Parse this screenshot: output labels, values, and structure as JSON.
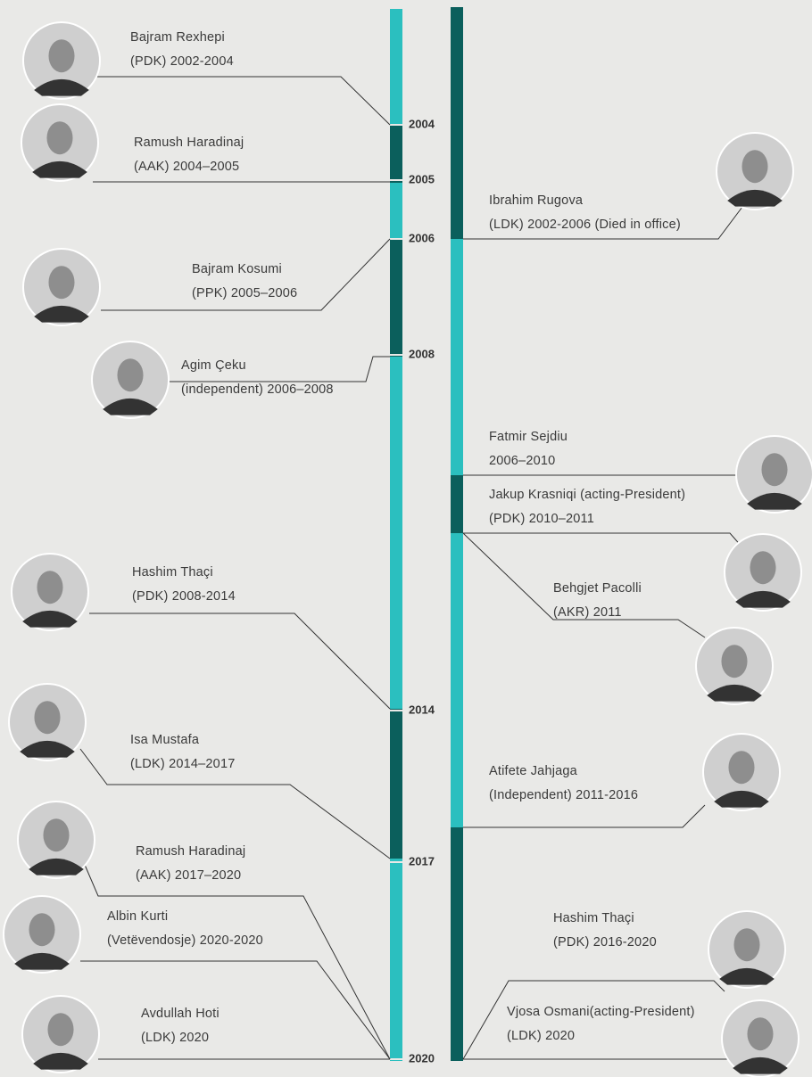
{
  "years": [
    "2004",
    "2005",
    "2006",
    "2008",
    "2014",
    "2017",
    "2020"
  ],
  "left_entries": [
    {
      "name": "Bajram Rexhepi",
      "detail": "(PDK) 2002-2004"
    },
    {
      "name": "Ramush Haradinaj",
      "detail": "(AAK) 2004–2005"
    },
    {
      "name": "Bajram Kosumi",
      "detail": "(PPK) 2005–2006"
    },
    {
      "name": "Agim Çeku",
      "detail": "(independent) 2006–2008"
    },
    {
      "name": "Hashim Thaçi",
      "detail": "(PDK) 2008-2014"
    },
    {
      "name": "Isa Mustafa",
      "detail": "(LDK) 2014–2017"
    },
    {
      "name": "Ramush Haradinaj",
      "detail": "(AAK) 2017–2020"
    },
    {
      "name": "Albin Kurti",
      "detail": "(Vetëvendosje) 2020-2020"
    },
    {
      "name": "Avdullah Hoti",
      "detail": "(LDK) 2020"
    }
  ],
  "right_entries": [
    {
      "name": "Ibrahim Rugova",
      "detail": "(LDK) 2002-2006 (Died in office)"
    },
    {
      "name": "Fatmir Sejdiu",
      "detail": "2006–2010"
    },
    {
      "name": "Jakup Krasniqi (acting-President)",
      "detail": "(PDK) 2010–2011"
    },
    {
      "name": "Behgjet Pacolli",
      "detail": "(AKR) 2011"
    },
    {
      "name": "Atifete Jahjaga",
      "detail": "(Independent) 2011-2016"
    },
    {
      "name": "Hashim Thaçi",
      "detail": "(PDK) 2016-2020"
    },
    {
      "name": "Vjosa Osmani(acting-President)",
      "detail": "(LDK) 2020"
    }
  ]
}
